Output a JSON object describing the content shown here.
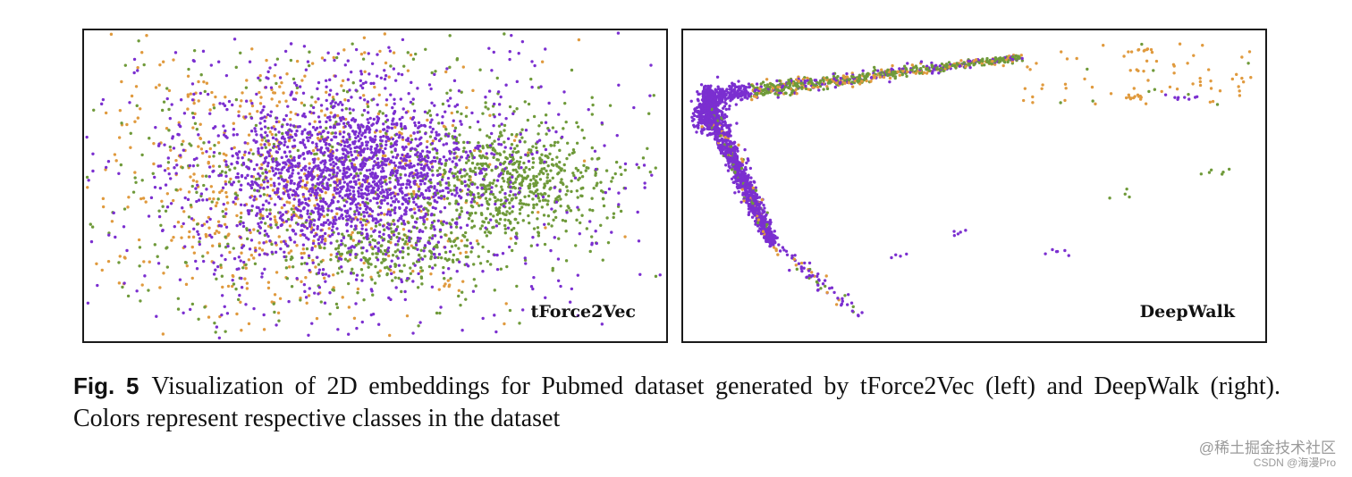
{
  "figure": {
    "label": "Fig. 5",
    "caption": "Visualization of 2D embeddings for Pubmed dataset generated by tForce2Vec (left) and DeepWalk (right). Colors represent respective classes in the dataset"
  },
  "colors": {
    "purple": "#7b2fd0",
    "green": "#6f9a3a",
    "orange": "#e09a3e"
  },
  "chart_data": [
    {
      "type": "scatter",
      "title": "tForce2Vec",
      "series": [
        {
          "color": "#7b2fd0",
          "distribution": "dense central cluster with broad scatter"
        },
        {
          "color": "#6f9a3a",
          "distribution": "dense cluster on right side, secondary lower-center cluster"
        },
        {
          "color": "#e09a3e",
          "distribution": "diffuse scatter concentrated left of center"
        }
      ]
    },
    {
      "type": "scatter",
      "title": "DeepWalk",
      "series": [
        {
          "color": "#7b2fd0",
          "distribution": "dense along left diagonal arm from top-left corner"
        },
        {
          "color": "#6f9a3a",
          "distribution": "along upper arm toward top-right"
        },
        {
          "color": "#e09a3e",
          "distribution": "sparse points at far end of upper arm and isolated clusters"
        }
      ]
    }
  ],
  "watermark": {
    "line1": "@稀土掘金技术社区",
    "line2": "CSDN @海漫Pro"
  }
}
